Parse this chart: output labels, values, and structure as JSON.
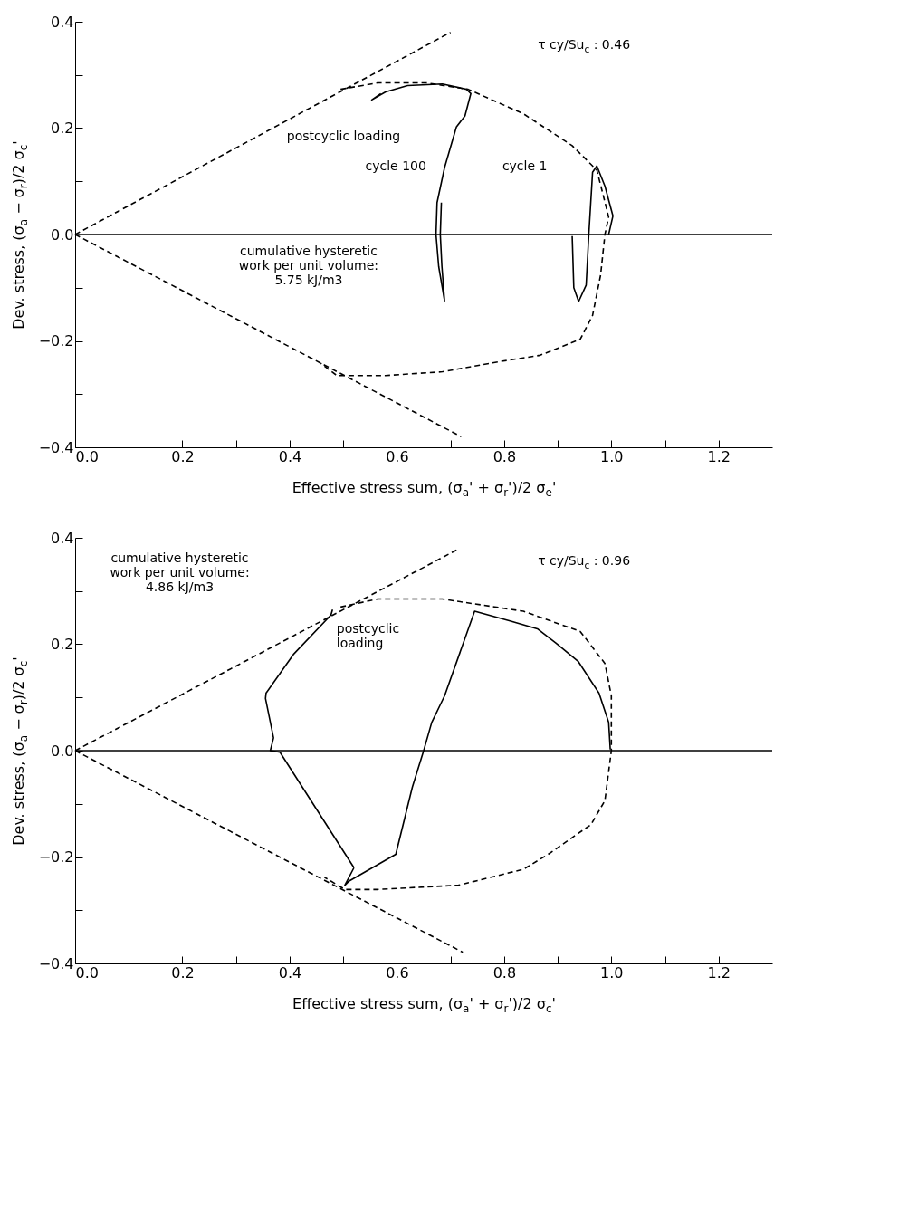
{
  "chart_data": [
    {
      "type": "line",
      "xlabel": "Effective stress sum,   (σ$_{a}$' + σ$_{r}$')/2 σ$_{e}$'",
      "ylabel": "Dev. stress,   (σ$_{a}$ − σ$_{r}$)/2 σ$_{c}$'",
      "xlim": [
        0,
        1.3
      ],
      "ylim": [
        -0.4,
        0.4
      ],
      "xticks": [
        {
          "value": 0,
          "label": "0.0"
        },
        {
          "value": 0.1,
          "label": null
        },
        {
          "value": 0.2,
          "label": "0.2"
        },
        {
          "value": 0.3,
          "label": null
        },
        {
          "value": 0.4,
          "label": "0.4"
        },
        {
          "value": 0.5,
          "label": null
        },
        {
          "value": 0.6,
          "label": "0.6"
        },
        {
          "value": 0.7,
          "label": null
        },
        {
          "value": 0.8,
          "label": "0.8"
        },
        {
          "value": 0.9,
          "label": null
        },
        {
          "value": 1,
          "label": "1.0"
        },
        {
          "value": 1.1,
          "label": null
        },
        {
          "value": 1.2,
          "label": "1.2"
        }
      ],
      "yticks": [
        {
          "value": -0.4,
          "label": "−0.4"
        },
        {
          "value": -0.3,
          "label": null
        },
        {
          "value": -0.2,
          "label": "−0.2"
        },
        {
          "value": -0.1,
          "label": null
        },
        {
          "value": 0,
          "label": "0.0"
        },
        {
          "value": 0.1,
          "label": null
        },
        {
          "value": 0.2,
          "label": "0.2"
        },
        {
          "value": 0.3,
          "label": null
        },
        {
          "value": 0.4,
          "label": "0.4"
        }
      ],
      "grid": false,
      "marker": "none",
      "ref_lines": [
        {
          "axis": "y",
          "value": 0,
          "color": "#000000",
          "line_style": "solid"
        }
      ],
      "series": [
        {
          "color": "#000000",
          "line_style": "dashed",
          "x": [
            0,
            0.7
          ],
          "values": [
            0,
            0.38
          ]
        },
        {
          "color": "#000000",
          "line_style": "dashed",
          "x": [
            0,
            0.72
          ],
          "values": [
            0,
            -0.38
          ]
        },
        {
          "color": "#000000",
          "line_style": "dashed",
          "x": [
            0.495,
            0.564,
            0.655,
            0.733,
            0.836,
            0.927,
            0.973,
            0.988,
            0.995,
            0.988,
            0.98,
            0.965,
            0.942,
            0.867,
            0.791,
            0.685,
            0.579,
            0.488,
            0.458
          ],
          "values": [
            0.273,
            0.285,
            0.285,
            0.273,
            0.227,
            0.167,
            0.121,
            0.061,
            0.033,
            0,
            -0.076,
            -0.152,
            -0.197,
            -0.227,
            -0.239,
            -0.258,
            -0.265,
            -0.265,
            -0.242
          ]
        },
        {
          "color": "#000000",
          "line_style": "solid",
          "x": [
            0.927,
            0.93,
            0.939,
            0.953,
            0.958,
            0.965,
            0.973,
            0.988,
            1.003,
            0.995
          ],
          "values": [
            -0.003,
            -0.1,
            -0.126,
            -0.095,
            0,
            0.117,
            0.129,
            0.091,
            0.035,
            0
          ]
        },
        {
          "color": "#000000",
          "line_style": "solid",
          "x": [
            0.683,
            0.681,
            0.684,
            0.689,
            0.678,
            0.673,
            0.675,
            0.689,
            0.711,
            0.727,
            0.738,
            0.73,
            0.685,
            0.62,
            0.579,
            0.553,
            0.57
          ],
          "values": [
            0.06,
            0,
            -0.06,
            -0.125,
            -0.06,
            0,
            0.06,
            0.126,
            0.202,
            0.223,
            0.265,
            0.273,
            0.283,
            0.28,
            0.268,
            0.253,
            0.265
          ]
        }
      ],
      "annotations": [
        "postcyclic loading",
        "cycle 100",
        "cycle 1",
        "cumulative hysteretic\nwork per unit volume:\n5.75 kJ/m3",
        "τ cy/Su$_{c}$ : 0.46"
      ]
    },
    {
      "type": "line",
      "xlabel": "Effective stress sum,   (σ$_{a}$' + σ$_{r}$')/2 σ$_{c}$'",
      "ylabel": "Dev. stress,   (σ$_{a}$ − σ$_{r}$)/2 σ$_{c}$'",
      "xlim": [
        0,
        1.3
      ],
      "ylim": [
        -0.4,
        0.4
      ],
      "xticks": [
        {
          "value": 0,
          "label": "0.0"
        },
        {
          "value": 0.1,
          "label": null
        },
        {
          "value": 0.2,
          "label": "0.2"
        },
        {
          "value": 0.3,
          "label": null
        },
        {
          "value": 0.4,
          "label": "0.4"
        },
        {
          "value": 0.5,
          "label": null
        },
        {
          "value": 0.6,
          "label": "0.6"
        },
        {
          "value": 0.7,
          "label": null
        },
        {
          "value": 0.8,
          "label": "0.8"
        },
        {
          "value": 0.9,
          "label": null
        },
        {
          "value": 1,
          "label": "1.0"
        },
        {
          "value": 1.1,
          "label": null
        },
        {
          "value": 1.2,
          "label": "1.2"
        }
      ],
      "yticks": [
        {
          "value": -0.4,
          "label": "−0.4"
        },
        {
          "value": -0.3,
          "label": null
        },
        {
          "value": -0.2,
          "label": "−0.2"
        },
        {
          "value": -0.1,
          "label": null
        },
        {
          "value": 0,
          "label": "0.0"
        },
        {
          "value": 0.1,
          "label": null
        },
        {
          "value": 0.2,
          "label": "0.2"
        },
        {
          "value": 0.3,
          "label": null
        },
        {
          "value": 0.4,
          "label": "0.4"
        }
      ],
      "grid": false,
      "marker": "none",
      "ref_lines": [
        {
          "axis": "y",
          "value": 0,
          "color": "#000000",
          "line_style": "solid"
        }
      ],
      "series": [
        {
          "color": "#000000",
          "line_style": "dashed",
          "x": [
            0,
            0.715
          ],
          "values": [
            0,
            0.379
          ]
        },
        {
          "color": "#000000",
          "line_style": "dashed",
          "x": [
            0,
            0.723
          ],
          "values": [
            0,
            -0.379
          ]
        },
        {
          "color": "#000000",
          "line_style": "dashed",
          "x": [
            0.495,
            0.564,
            0.685,
            0.836,
            0.942,
            0.988,
            1,
            1,
            0.988,
            0.962,
            0.882,
            0.836,
            0.715,
            0.564,
            0.503,
            0.465
          ],
          "values": [
            0.27,
            0.285,
            0.285,
            0.262,
            0.224,
            0.164,
            0.103,
            0,
            -0.094,
            -0.139,
            -0.195,
            -0.223,
            -0.253,
            -0.261,
            -0.261,
            -0.238
          ]
        },
        {
          "color": "#000000",
          "line_style": "solid",
          "x": [
            0.998,
            0.995,
            0.977,
            0.938,
            0.897,
            0.862,
            0.811,
            0.745,
            0.689,
            0.665,
            0.65,
            0.629,
            0.598,
            0.511,
            0.503,
            0.52
          ],
          "values": [
            0.002,
            0.053,
            0.108,
            0.168,
            0.202,
            0.229,
            0.244,
            0.262,
            0.103,
            0.053,
            0,
            -0.068,
            -0.195,
            -0.245,
            -0.253,
            -0.22
          ]
        },
        {
          "color": "#000000",
          "line_style": "solid",
          "x": [
            0.52,
            0.382,
            0.364,
            0.37,
            0.355,
            0.356,
            0.408,
            0.477,
            0.48
          ],
          "values": [
            -0.22,
            -0.003,
            0,
            0.024,
            0.098,
            0.108,
            0.182,
            0.255,
            0.265
          ]
        }
      ],
      "annotations": [
        "postcyclic\nloading",
        "cumulative hysteretic\nwork per unit volume:\n4.86 kJ/m3",
        "τ cy/Su$_{c}$ : 0.96"
      ]
    }
  ]
}
